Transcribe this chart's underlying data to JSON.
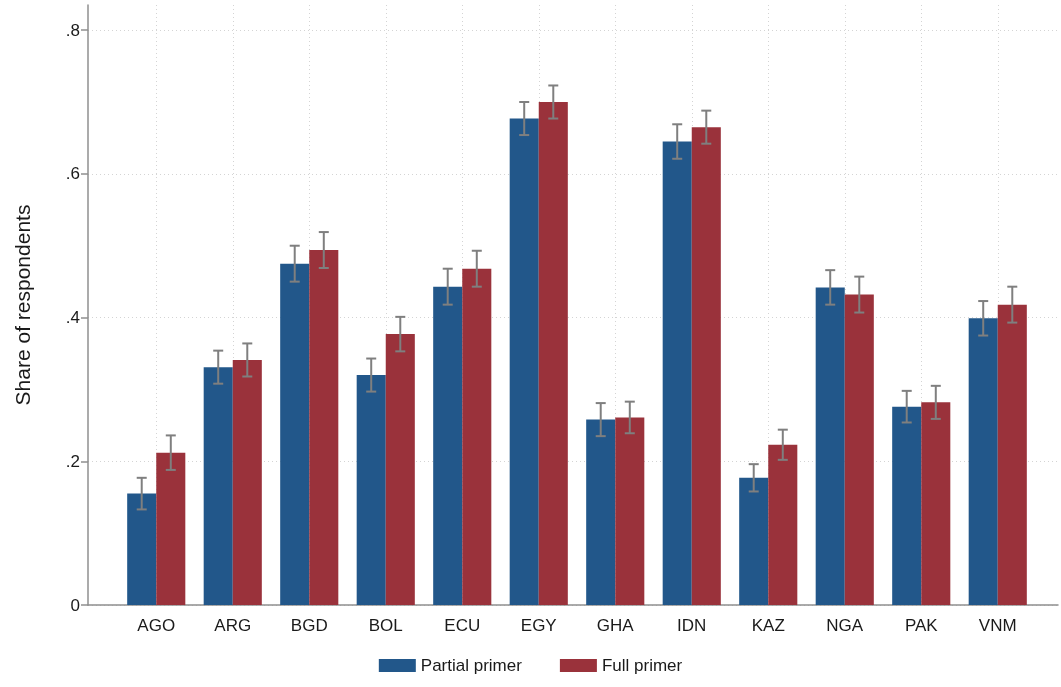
{
  "chart_data": {
    "type": "bar",
    "ylabel": "Share of respondents",
    "categories": [
      "AGO",
      "ARG",
      "BGD",
      "BOL",
      "ECU",
      "EGY",
      "GHA",
      "IDN",
      "KAZ",
      "NGA",
      "PAK",
      "VNM"
    ],
    "series": [
      {
        "name": "Partial primer",
        "color": "#22578a",
        "values": [
          0.155,
          0.331,
          0.475,
          0.32,
          0.443,
          0.677,
          0.258,
          0.645,
          0.177,
          0.442,
          0.276,
          0.399
        ],
        "errors": [
          0.022,
          0.023,
          0.025,
          0.023,
          0.025,
          0.023,
          0.023,
          0.024,
          0.019,
          0.024,
          0.022,
          0.024
        ]
      },
      {
        "name": "Full primer",
        "color": "#9a323b",
        "values": [
          0.212,
          0.341,
          0.494,
          0.377,
          0.468,
          0.7,
          0.261,
          0.665,
          0.223,
          0.432,
          0.282,
          0.418
        ],
        "errors": [
          0.024,
          0.023,
          0.025,
          0.024,
          0.025,
          0.023,
          0.022,
          0.023,
          0.021,
          0.025,
          0.023,
          0.025
        ]
      }
    ],
    "ylim": [
      0,
      0.835
    ],
    "yticks": [
      0,
      {
        "value": 0.2,
        "label": ".2"
      },
      {
        "value": 0.4,
        "label": ".4"
      },
      {
        "value": 0.6,
        "label": ".6"
      },
      {
        "value": 0.8,
        "label": ".8"
      }
    ],
    "grid": true,
    "legend": "bottom"
  }
}
